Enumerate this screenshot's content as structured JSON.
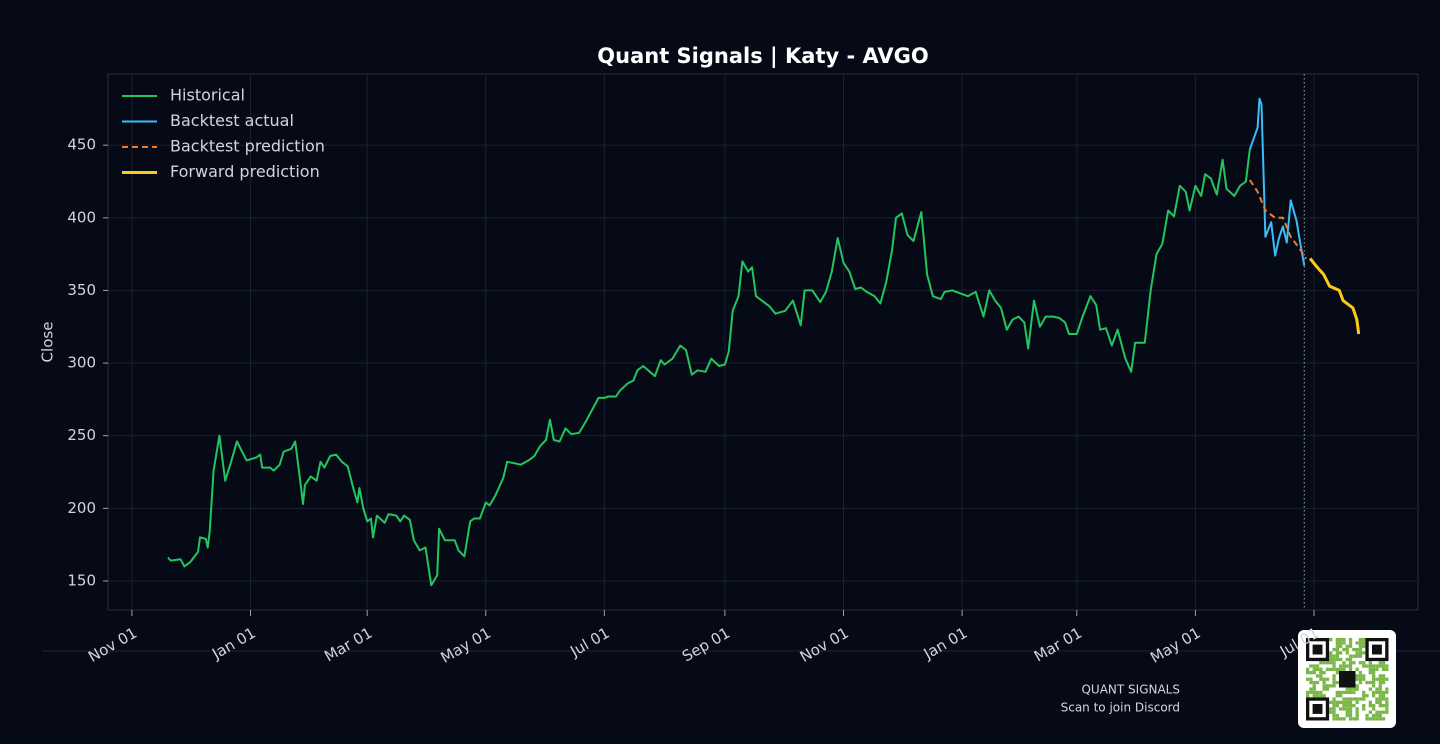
{
  "chart_data": {
    "type": "line",
    "title": "Quant Signals | Katy - AVGO",
    "ylabel": "Close",
    "xlim": [
      -12.3,
      661.5
    ],
    "ylim": [
      130,
      499
    ],
    "xticks": [
      {
        "value": 0,
        "label": "Nov 01"
      },
      {
        "value": 61,
        "label": "Jan 01"
      },
      {
        "value": 121,
        "label": "Mar 01"
      },
      {
        "value": 182,
        "label": "May 01"
      },
      {
        "value": 243,
        "label": "Jul 01"
      },
      {
        "value": 305,
        "label": "Sep 01"
      },
      {
        "value": 366,
        "label": "Nov 01"
      },
      {
        "value": 427,
        "label": "Jan 01"
      },
      {
        "value": 486,
        "label": "Mar 01"
      },
      {
        "value": 547,
        "label": "May 01"
      },
      {
        "value": 608,
        "label": "Jul 01"
      }
    ],
    "yticks": [
      150,
      200,
      250,
      300,
      350,
      400,
      450
    ],
    "grid": true,
    "legend": "upper left",
    "cutoff_x": 603,
    "series": [
      {
        "name": "Historical",
        "color": "#22c55e",
        "linestyle": "solid",
        "x": [
          18.5,
          20,
          25,
          27,
          30,
          34,
          35,
          38,
          39,
          40,
          42,
          45,
          48,
          51,
          54,
          59,
          64,
          66,
          67,
          71,
          73,
          76,
          78,
          82,
          84,
          87,
          88,
          89,
          92,
          95,
          97,
          99,
          102,
          105,
          108,
          111,
          114,
          116,
          117,
          119,
          121,
          123,
          124,
          126,
          130,
          132,
          136,
          138,
          140,
          143,
          145,
          148,
          151,
          154,
          157,
          158,
          161,
          166,
          168,
          171,
          174,
          176,
          179,
          182,
          184,
          187,
          191,
          193,
          197,
          200,
          204,
          207,
          210,
          213,
          215,
          217,
          220,
          223,
          226,
          230,
          234,
          236,
          240,
          243,
          245,
          249,
          251,
          255,
          258,
          260,
          263,
          269,
          272,
          274,
          278,
          282,
          285,
          288,
          291,
          295,
          298,
          302,
          305,
          307,
          309,
          312,
          314,
          317,
          319,
          321,
          325,
          328,
          331,
          336,
          340,
          344,
          346,
          350,
          354,
          357,
          360,
          363,
          366,
          369,
          372,
          375,
          378,
          382,
          385,
          388,
          391,
          393,
          396,
          399,
          402,
          406,
          409,
          412,
          416,
          418,
          422,
          426,
          430,
          434,
          438,
          441,
          444,
          447,
          450,
          453,
          456,
          459,
          461,
          464,
          467,
          470,
          474,
          477,
          480,
          482,
          486,
          489,
          493,
          496,
          498,
          501,
          504,
          507,
          511,
          514,
          516,
          521,
          524,
          527,
          530,
          533,
          536,
          539,
          542,
          544,
          547,
          550,
          552,
          555,
          558,
          561,
          563,
          567,
          570,
          573,
          575
        ],
        "values": [
          166,
          164,
          165,
          160,
          163,
          170,
          180,
          179,
          173,
          184,
          226,
          250,
          219,
          232,
          246,
          233,
          235,
          237,
          228,
          228,
          226,
          230,
          239,
          241,
          246,
          214,
          203,
          216,
          222,
          219,
          232,
          228,
          236,
          237,
          232,
          229,
          213,
          204,
          214,
          200,
          191,
          193,
          180,
          195,
          190,
          196,
          195,
          191,
          195,
          192,
          178,
          171,
          173,
          147,
          154,
          186,
          178,
          178,
          171,
          167,
          191,
          193,
          193,
          204,
          202,
          209,
          221,
          232,
          231,
          230,
          233,
          236,
          243,
          247,
          261,
          247,
          246,
          255,
          251,
          252,
          261,
          266,
          276,
          276,
          277,
          277,
          281,
          286,
          288,
          295,
          298,
          291,
          302,
          299,
          303,
          312,
          309,
          292,
          295,
          294,
          303,
          298,
          299,
          308,
          336,
          346,
          370,
          363,
          366,
          346,
          342,
          339,
          334,
          336,
          343,
          326,
          350,
          350,
          342,
          349,
          363,
          386,
          369,
          363,
          351,
          352,
          349,
          346,
          341,
          356,
          378,
          400,
          403,
          388,
          384,
          404,
          361,
          346,
          344,
          349,
          350,
          348,
          346,
          349,
          332,
          350,
          343,
          338,
          323,
          330,
          332,
          328,
          310,
          343,
          325,
          332,
          332,
          331,
          328,
          320,
          320,
          332,
          346,
          340,
          323,
          324,
          312,
          323,
          303,
          294,
          314,
          314,
          350,
          375,
          382,
          405,
          401,
          422,
          418,
          405,
          422,
          415,
          430,
          427,
          416,
          440,
          420,
          415,
          422,
          425,
          447
        ]
      },
      {
        "name": "Backtest actual",
        "color": "#38bdf8",
        "linestyle": "solid",
        "x": [
          575,
          579,
          580,
          581,
          583,
          586,
          588,
          590,
          592,
          594,
          596,
          599,
          601,
          603
        ],
        "values": [
          447,
          462,
          482,
          478,
          387,
          397,
          374,
          386,
          394,
          383,
          412,
          398,
          382,
          367
        ]
      },
      {
        "name": "Backtest prediction",
        "color": "#f07c2a",
        "linestyle": "dashed",
        "x": [
          575,
          579,
          583,
          588,
          592,
          596,
          601,
          604
        ],
        "values": [
          426,
          418,
          405,
          400,
          400,
          387,
          378,
          372
        ]
      },
      {
        "name": "Forward prediction",
        "color": "#facc15",
        "linestyle": "solid",
        "x": [
          606,
          609,
          613,
          616,
          621,
          623,
          628,
          630,
          631
        ],
        "values": [
          372,
          367,
          361,
          353,
          350,
          343,
          338,
          330,
          320
        ]
      }
    ]
  },
  "footer": {
    "brand": "QUANT SIGNALS",
    "cta": "Scan to join Discord"
  }
}
